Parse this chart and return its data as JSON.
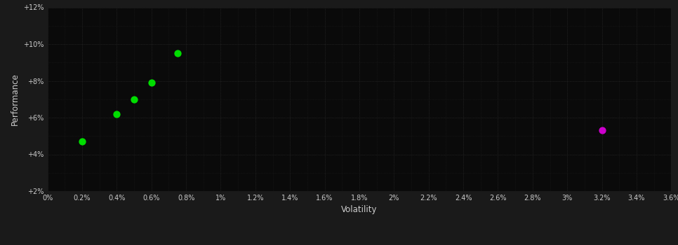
{
  "green_points": [
    [
      0.002,
      0.047
    ],
    [
      0.004,
      0.062
    ],
    [
      0.005,
      0.07
    ],
    [
      0.006,
      0.079
    ],
    [
      0.0075,
      0.095
    ]
  ],
  "magenta_points": [
    [
      0.032,
      0.053
    ]
  ],
  "green_color": "#00dd00",
  "magenta_color": "#cc00cc",
  "fig_bg_color": "#1a1a1a",
  "plot_bg_color": "#0a0a0a",
  "major_grid_color": "#333333",
  "minor_grid_color": "#222222",
  "tick_color": "#cccccc",
  "label_color": "#cccccc",
  "xlabel": "Volatility",
  "ylabel": "Performance",
  "xlim": [
    0.0,
    0.036
  ],
  "ylim": [
    0.02,
    0.12
  ],
  "xticks": [
    0.0,
    0.002,
    0.004,
    0.006,
    0.008,
    0.01,
    0.012,
    0.014,
    0.016,
    0.018,
    0.02,
    0.022,
    0.024,
    0.026,
    0.028,
    0.03,
    0.032,
    0.034,
    0.036
  ],
  "yticks": [
    0.02,
    0.04,
    0.06,
    0.08,
    0.1,
    0.12
  ],
  "xtick_labels": [
    "0%",
    "0.2%",
    "0.4%",
    "0.6%",
    "0.8%",
    "1%",
    "1.2%",
    "1.4%",
    "1.6%",
    "1.8%",
    "2%",
    "2.2%",
    "2.4%",
    "2.6%",
    "2.8%",
    "3%",
    "3.2%",
    "3.4%",
    "3.6%"
  ],
  "ytick_labels": [
    "+2%",
    "+4%",
    "+6%",
    "+8%",
    "+10%",
    "+12%"
  ],
  "marker_size": 55,
  "figsize": [
    9.66,
    3.5
  ],
  "dpi": 100
}
